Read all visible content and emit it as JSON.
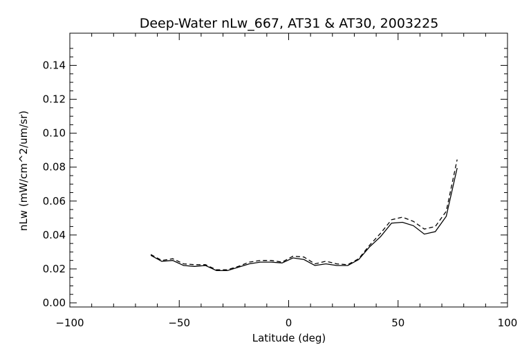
{
  "chart_data": {
    "type": "line",
    "title": "Deep-Water nLw_667, AT31 & AT30, 2003225",
    "xlabel": "Latitude (deg)",
    "ylabel": "nLw (mW/cm^2/um/sr)",
    "xlim": [
      -100,
      100
    ],
    "ylim": [
      0.0,
      0.15
    ],
    "xticks": [
      -100,
      -50,
      0,
      50,
      100
    ],
    "xtick_labels": [
      "−100",
      "−50",
      "0",
      "50",
      "100"
    ],
    "yticks": [
      0.0,
      0.02,
      0.04,
      0.06,
      0.08,
      0.1,
      0.12,
      0.14
    ],
    "ytick_labels": [
      "0.00",
      "0.02",
      "0.04",
      "0.06",
      "0.08",
      "0.10",
      "0.12",
      "0.14"
    ],
    "grid": false,
    "series": [
      {
        "style": "solid",
        "color": "#000000",
        "x": [
          -63,
          -58,
          -53,
          -48,
          -43,
          -38,
          -33,
          -28,
          -23,
          -18,
          -13,
          -8,
          -3,
          2,
          7,
          12,
          17,
          22,
          27,
          32,
          37,
          42,
          47,
          52,
          57,
          62,
          67,
          72,
          77
        ],
        "y": [
          0.028,
          0.0245,
          0.025,
          0.022,
          0.0215,
          0.022,
          0.019,
          0.019,
          0.021,
          0.023,
          0.024,
          0.024,
          0.0235,
          0.0265,
          0.0255,
          0.022,
          0.023,
          0.022,
          0.022,
          0.0255,
          0.033,
          0.039,
          0.047,
          0.0475,
          0.0455,
          0.0405,
          0.042,
          0.051,
          0.0795
        ]
      },
      {
        "style": "dashed",
        "color": "#000000",
        "x": [
          -63,
          -58,
          -53,
          -48,
          -43,
          -38,
          -33,
          -28,
          -23,
          -18,
          -13,
          -8,
          -3,
          2,
          7,
          12,
          17,
          22,
          27,
          32,
          37,
          42,
          47,
          52,
          57,
          62,
          67,
          72,
          77
        ],
        "y": [
          0.0285,
          0.025,
          0.026,
          0.023,
          0.0225,
          0.0225,
          0.0195,
          0.0195,
          0.0215,
          0.024,
          0.025,
          0.025,
          0.024,
          0.0275,
          0.027,
          0.023,
          0.0245,
          0.023,
          0.0225,
          0.026,
          0.034,
          0.041,
          0.049,
          0.0505,
          0.048,
          0.0435,
          0.045,
          0.054,
          0.0845
        ]
      }
    ]
  }
}
